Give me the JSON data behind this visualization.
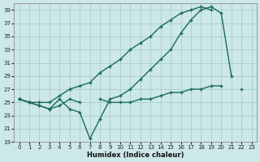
{
  "xlabel": "Humidex (Indice chaleur)",
  "bg_color": "#cce8e8",
  "grid_color": "#b0d0d0",
  "line_color": "#1a6b5a",
  "xlim": [
    -0.5,
    23.5
  ],
  "ylim": [
    19,
    40
  ],
  "yticks": [
    19,
    21,
    23,
    25,
    27,
    29,
    31,
    33,
    35,
    37,
    39
  ],
  "xticks": [
    0,
    1,
    2,
    3,
    4,
    5,
    6,
    7,
    8,
    9,
    10,
    11,
    12,
    13,
    14,
    15,
    16,
    17,
    18,
    19,
    20,
    21,
    22,
    23
  ],
  "series1_x": [
    0,
    1,
    2,
    3,
    4,
    5,
    6,
    7,
    8,
    9,
    10,
    11,
    12,
    13,
    14,
    15,
    16,
    17,
    18,
    19,
    20,
    21,
    22,
    23
  ],
  "series1_y": [
    25.5,
    25.0,
    24.5,
    24.0,
    25.5,
    24.0,
    23.5,
    19.5,
    22.5,
    25.5,
    26.0,
    27.0,
    28.5,
    30.0,
    31.5,
    33.0,
    35.5,
    37.5,
    39.0,
    39.5,
    38.5,
    29.0,
    null,
    null
  ],
  "series2_x": [
    0,
    1,
    2,
    3,
    4,
    5,
    6,
    7,
    8,
    9,
    10,
    11,
    12,
    13,
    14,
    15,
    16,
    17,
    18,
    19,
    20,
    21,
    22,
    23
  ],
  "series2_y": [
    25.5,
    25.0,
    25.0,
    25.0,
    26.0,
    27.0,
    27.5,
    28.0,
    29.5,
    30.5,
    31.5,
    33.0,
    34.0,
    35.0,
    36.5,
    37.5,
    38.5,
    39.0,
    39.5,
    39.0,
    null,
    null,
    null,
    null
  ],
  "series3_x": [
    0,
    1,
    2,
    3,
    4,
    5,
    6,
    7,
    8,
    9,
    10,
    11,
    12,
    13,
    14,
    15,
    16,
    17,
    18,
    19,
    20,
    21,
    22,
    23
  ],
  "series3_y": [
    25.5,
    25.0,
    24.5,
    24.0,
    24.5,
    25.5,
    25.0,
    null,
    25.5,
    25.0,
    25.0,
    25.0,
    25.5,
    25.5,
    26.0,
    26.5,
    26.5,
    27.0,
    27.0,
    27.5,
    27.5,
    null,
    27.0,
    null
  ]
}
